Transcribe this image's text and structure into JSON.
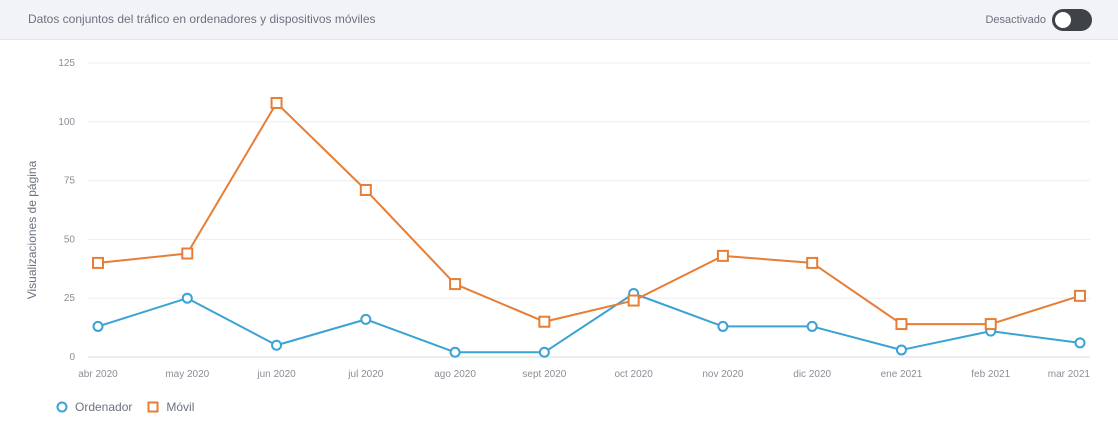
{
  "header": {
    "title": "Datos conjuntos del tráfico en ordenadores y dispositivos móviles",
    "toggle_label": "Desactivado",
    "toggle_on": false
  },
  "colors": {
    "ordenador": "#3aa3d4",
    "movil": "#e67e35",
    "grid": "#eceef1",
    "baseline": "#d5d8dc"
  },
  "chart_data": {
    "type": "line",
    "title": "",
    "xlabel": "",
    "ylabel": "Visualizaciones de página",
    "ylim": [
      0,
      125
    ],
    "yticks": [
      0,
      25,
      50,
      75,
      100,
      125
    ],
    "grid": true,
    "legend_position": "bottom-left",
    "categories": [
      "abr 2020",
      "may 2020",
      "jun 2020",
      "jul 2020",
      "ago 2020",
      "sept 2020",
      "oct 2020",
      "nov 2020",
      "dic 2020",
      "ene 2021",
      "feb 2021",
      "mar 2021"
    ],
    "series": [
      {
        "name": "Ordenador",
        "marker": "circle",
        "values": [
          13,
          25,
          5,
          16,
          2,
          2,
          27,
          13,
          13,
          3,
          11,
          6
        ]
      },
      {
        "name": "Móvil",
        "marker": "square",
        "values": [
          40,
          44,
          108,
          71,
          31,
          15,
          24,
          43,
          40,
          14,
          14,
          26
        ]
      }
    ]
  }
}
